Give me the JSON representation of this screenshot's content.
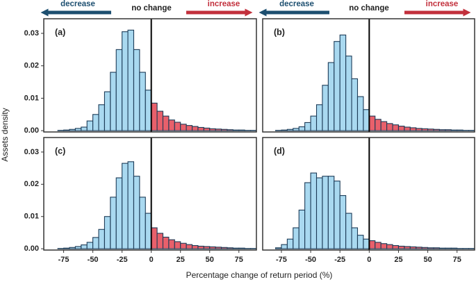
{
  "figure": {
    "x_label": "Percentage change of return period (%)",
    "y_label": "Assets density",
    "annotations": [
      "decrease",
      "no change",
      "increase",
      "decrease",
      "no change",
      "increase"
    ]
  },
  "chart_data": [
    {
      "type": "histogram",
      "title": "(a)",
      "color_below_zero": "#a9d9f0",
      "color_above_zero": "#e8606b",
      "edge_color": "#1c3b57",
      "vline": 0,
      "bins": [
        -90,
        -85,
        -80,
        -75,
        -70,
        -65,
        -60,
        -55,
        -50,
        -45,
        -40,
        -35,
        -30,
        -25,
        -20,
        -15,
        -10,
        -5,
        0,
        5,
        10,
        15,
        20,
        25,
        30,
        35,
        40,
        45,
        50,
        55,
        60,
        65,
        70,
        75,
        80,
        85,
        90
      ],
      "values": [
        0,
        0,
        0.0001,
        0.0002,
        0.0004,
        0.0007,
        0.0011,
        0.003,
        0.005,
        0.008,
        0.012,
        0.018,
        0.025,
        0.0305,
        0.031,
        0.025,
        0.018,
        0.0125,
        0.0085,
        0.006,
        0.0045,
        0.0033,
        0.0026,
        0.002,
        0.0016,
        0.0013,
        0.001,
        0.0008,
        0.0006,
        0.0005,
        0.0004,
        0.0003,
        0.0002,
        0.0002,
        0.0001,
        0.0001
      ],
      "xlim": [
        -92,
        90
      ],
      "ylim": [
        -0.0004,
        0.0345
      ],
      "yticks": [
        {
          "value": 0,
          "label": "0.00"
        },
        0.01,
        0.02,
        0.03
      ]
    },
    {
      "type": "histogram",
      "title": "(b)",
      "color_below_zero": "#a9d9f0",
      "color_above_zero": "#e8606b",
      "edge_color": "#1c3b57",
      "vline": 0,
      "bins": [
        -90,
        -85,
        -80,
        -75,
        -70,
        -65,
        -60,
        -55,
        -50,
        -45,
        -40,
        -35,
        -30,
        -25,
        -20,
        -15,
        -10,
        -5,
        0,
        5,
        10,
        15,
        20,
        25,
        30,
        35,
        40,
        45,
        50,
        55,
        60,
        65,
        70,
        75,
        80,
        85,
        90
      ],
      "values": [
        0,
        0,
        0.0001,
        0.0002,
        0.0004,
        0.0007,
        0.0012,
        0.0025,
        0.0045,
        0.008,
        0.014,
        0.021,
        0.0275,
        0.0295,
        0.023,
        0.016,
        0.0105,
        0.0065,
        0.0045,
        0.0035,
        0.0028,
        0.0022,
        0.0018,
        0.0014,
        0.0011,
        0.0009,
        0.0007,
        0.0006,
        0.0005,
        0.0004,
        0.0003,
        0.0003,
        0.0002,
        0.0002,
        0.0001,
        0.0001
      ],
      "xlim": [
        -91,
        90
      ],
      "ylim": [
        -0.0004,
        0.0345
      ]
    },
    {
      "type": "histogram",
      "title": "(c)",
      "color_below_zero": "#a9d9f0",
      "color_above_zero": "#e8606b",
      "edge_color": "#1c3b57",
      "vline": 0,
      "bins": [
        -90,
        -85,
        -80,
        -75,
        -70,
        -65,
        -60,
        -55,
        -50,
        -45,
        -40,
        -35,
        -30,
        -25,
        -20,
        -15,
        -10,
        -5,
        0,
        5,
        10,
        15,
        20,
        25,
        30,
        35,
        40,
        45,
        50,
        55,
        60,
        65,
        70,
        75,
        80,
        85,
        90
      ],
      "values": [
        0,
        0,
        0.0001,
        0.0002,
        0.0004,
        0.0007,
        0.0012,
        0.002,
        0.0035,
        0.006,
        0.01,
        0.016,
        0.022,
        0.0265,
        0.027,
        0.0225,
        0.016,
        0.011,
        0.0065,
        0.0048,
        0.0036,
        0.0028,
        0.0022,
        0.0017,
        0.0013,
        0.001,
        0.0008,
        0.0007,
        0.0006,
        0.0005,
        0.0004,
        0.0003,
        0.0002,
        0.0002,
        0.0001,
        0.0001
      ],
      "xlim": [
        -92,
        90
      ],
      "ylim": [
        -0.0004,
        0.0345
      ],
      "yticks": [
        {
          "value": 0,
          "label": "0.00"
        },
        0.01,
        0.02,
        0.03
      ],
      "xticks": [
        -75,
        -50,
        -25,
        0,
        25,
        50,
        75
      ]
    },
    {
      "type": "histogram",
      "title": "(d)",
      "color_below_zero": "#a9d9f0",
      "color_above_zero": "#e8606b",
      "edge_color": "#1c3b57",
      "vline": 0,
      "bins": [
        -90,
        -85,
        -80,
        -75,
        -70,
        -65,
        -60,
        -55,
        -50,
        -45,
        -40,
        -35,
        -30,
        -25,
        -20,
        -15,
        -10,
        -5,
        0,
        5,
        10,
        15,
        20,
        25,
        30,
        35,
        40,
        45,
        50,
        55,
        60,
        65,
        70,
        75,
        80,
        85,
        90
      ],
      "values": [
        0,
        0,
        0.0003,
        0.0013,
        0.003,
        0.0065,
        0.012,
        0.0205,
        0.0235,
        0.022,
        0.0225,
        0.0225,
        0.021,
        0.0165,
        0.011,
        0.0065,
        0.0042,
        0.003,
        0.0025,
        0.002,
        0.0016,
        0.0013,
        0.001,
        0.0008,
        0.0007,
        0.0006,
        0.0005,
        0.0004,
        0.0003,
        0.0003,
        0.0002,
        0.0002,
        0.0002,
        0.0001,
        0.0001,
        0.0001
      ],
      "xlim": [
        -91,
        90
      ],
      "ylim": [
        -0.0004,
        0.0345
      ],
      "xticks": [
        -75,
        -50,
        -25,
        0,
        25,
        50,
        75
      ]
    }
  ]
}
